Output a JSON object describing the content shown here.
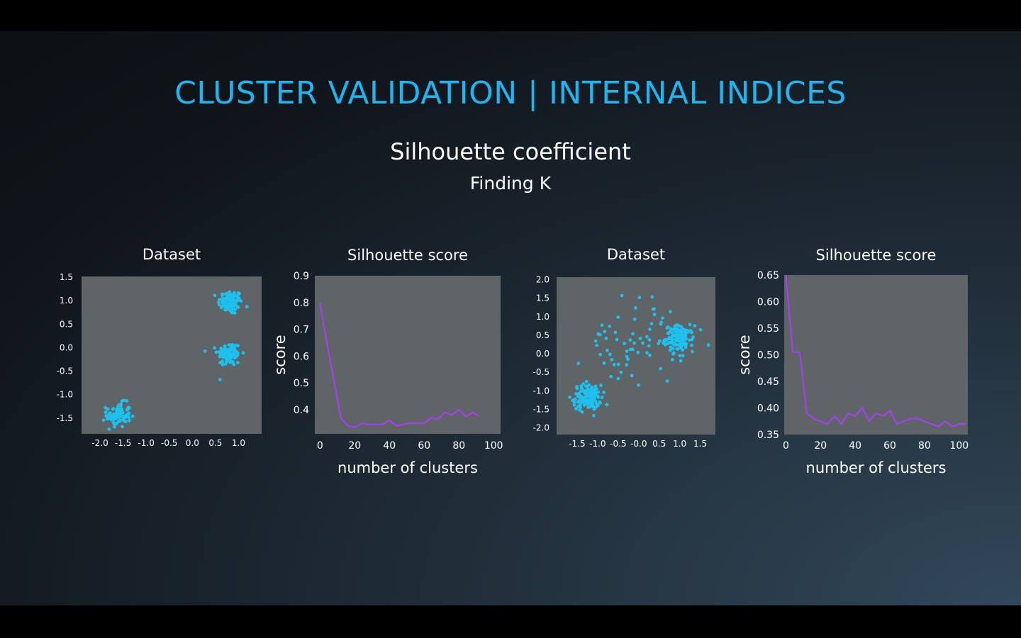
{
  "slide": {
    "title": "CLUSTER VALIDATION | INTERNAL INDICES",
    "subtitle": "Silhouette coefficient",
    "subsubtitle": "Finding K"
  },
  "colors": {
    "title": "#1fb6f0",
    "points": "#1ec0ee",
    "line": "#a33ff0",
    "plot_bg": "#5f6467"
  },
  "chart_data": [
    {
      "type": "scatter",
      "title": "Dataset",
      "xlabel": "",
      "ylabel": "",
      "xticks": [
        "-2.0",
        "-1.5",
        "-1.0",
        "-0.5",
        "0.0",
        "0.5",
        "1.0"
      ],
      "yticks": [
        "1.5",
        "1.0",
        "0.5",
        "0.0",
        "-0.5",
        "-1.0",
        "-1.5"
      ],
      "xlim": [
        -2.4,
        1.5
      ],
      "ylim": [
        -1.85,
        1.5
      ],
      "blobs": [
        {
          "x": 0.82,
          "y": 0.95,
          "spread": 0.13,
          "n": 95
        },
        {
          "x": 0.8,
          "y": -0.15,
          "spread": 0.13,
          "n": 95
        },
        {
          "x": -1.6,
          "y": -1.45,
          "spread": 0.13,
          "n": 95
        }
      ]
    },
    {
      "type": "line",
      "title": "Silhouette score",
      "xlabel": "number of clusters",
      "ylabel": "score",
      "xticks": [
        "0",
        "20",
        "40",
        "60",
        "80",
        "100"
      ],
      "yticks": [
        "0.9",
        "0.8",
        "0.7",
        "0.6",
        "0.5",
        "0.4"
      ],
      "xlim": [
        -3,
        104
      ],
      "ylim": [
        0.31,
        0.9
      ],
      "x": [
        0,
        4,
        8,
        12,
        16,
        20,
        24,
        28,
        32,
        36,
        40,
        44,
        48,
        52,
        56,
        60,
        64,
        68,
        72,
        76,
        80,
        84,
        88,
        92
      ],
      "y": [
        0.8,
        0.65,
        0.51,
        0.37,
        0.34,
        0.335,
        0.35,
        0.345,
        0.345,
        0.345,
        0.36,
        0.34,
        0.345,
        0.35,
        0.35,
        0.35,
        0.37,
        0.365,
        0.39,
        0.38,
        0.4,
        0.375,
        0.39,
        0.375
      ]
    },
    {
      "type": "scatter",
      "title": "Dataset",
      "xlabel": "",
      "ylabel": "",
      "xticks": [
        "-1.5",
        "-1.0",
        "-0.5",
        "-0.0",
        "0.5",
        "1.0",
        "1.5"
      ],
      "yticks": [
        "2.0",
        "1.5",
        "1.0",
        "0.5",
        "0.0",
        "-0.5",
        "-1.0",
        "-1.5",
        "-2.0"
      ],
      "xlim": [
        -2.0,
        1.87
      ],
      "ylim": [
        -2.2,
        2.05
      ],
      "blobs": [
        {
          "x": -1.25,
          "y": -1.2,
          "spread": 0.17,
          "n": 130
        },
        {
          "x": 1.0,
          "y": 0.4,
          "spread": 0.17,
          "n": 130
        },
        {
          "x": -0.1,
          "y": 0.3,
          "spread": 0.6,
          "n": 70
        }
      ]
    },
    {
      "type": "line",
      "title": "Silhouette score",
      "xlabel": "number of clusters",
      "ylabel": "score",
      "xticks": [
        "0",
        "20",
        "40",
        "60",
        "80",
        "100"
      ],
      "yticks": [
        "0.65",
        "0.60",
        "0.55",
        "0.50",
        "0.45",
        "0.40",
        "0.35"
      ],
      "xlim": [
        -1,
        105
      ],
      "ylim": [
        0.35,
        0.65
      ],
      "x": [
        0,
        4,
        8,
        12,
        16,
        20,
        24,
        28,
        32,
        36,
        40,
        44,
        48,
        52,
        56,
        60,
        64,
        68,
        72,
        76,
        80,
        84,
        88,
        92,
        96,
        100,
        104
      ],
      "y": [
        0.65,
        0.505,
        0.505,
        0.39,
        0.38,
        0.375,
        0.37,
        0.385,
        0.37,
        0.39,
        0.385,
        0.4,
        0.375,
        0.39,
        0.385,
        0.395,
        0.37,
        0.375,
        0.38,
        0.38,
        0.375,
        0.37,
        0.365,
        0.375,
        0.365,
        0.37,
        0.37
      ]
    }
  ]
}
